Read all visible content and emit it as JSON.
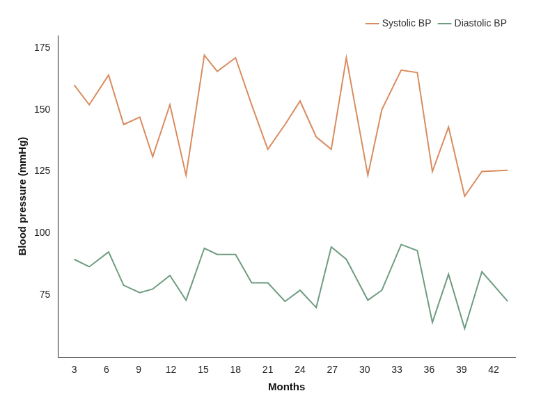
{
  "chart_data": {
    "type": "line",
    "x_label": "Months",
    "y_label": "Blood pressure (mmHg)",
    "x": [
      3.0,
      4.4,
      6.2,
      7.6,
      9.1,
      10.3,
      11.9,
      13.4,
      15.1,
      16.3,
      18.0,
      19.5,
      21.0,
      22.6,
      24.0,
      25.5,
      26.9,
      28.3,
      30.3,
      31.6,
      33.4,
      34.9,
      36.3,
      37.8,
      39.3,
      40.9,
      43.3
    ],
    "series": [
      {
        "name": "Systolic BP",
        "color": "#d98c5f",
        "values": [
          160,
          152,
          164,
          144,
          147,
          131,
          152,
          123.5,
          172,
          165.5,
          171,
          152,
          134,
          144,
          153.5,
          139,
          134,
          171,
          123.5,
          150,
          166,
          165,
          125,
          143,
          115,
          125,
          125.5
        ]
      },
      {
        "name": "Diastolic BP",
        "color": "#6d9c80",
        "values": [
          89.5,
          86.5,
          92.5,
          79,
          76,
          77.5,
          83,
          73,
          94,
          91.5,
          91.5,
          80,
          80,
          72.5,
          77,
          70,
          94.5,
          89.5,
          73,
          77,
          95.5,
          93,
          64,
          83.5,
          61.5,
          84.5,
          72.5
        ]
      }
    ],
    "xlim": [
      1.5,
      44
    ],
    "xticks": [
      3,
      6,
      9,
      12,
      15,
      18,
      21,
      24,
      27,
      30,
      33,
      36,
      39,
      42
    ],
    "ylim": [
      50,
      180
    ],
    "yticks": [
      75,
      100,
      125,
      150,
      175
    ],
    "grid": false,
    "legend": "top-right"
  }
}
